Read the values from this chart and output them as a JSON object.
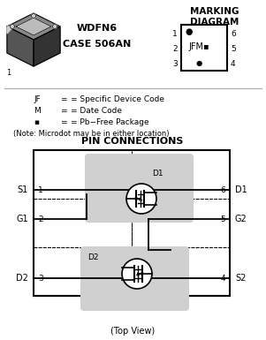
{
  "title_marking": "MARKING\nDIAGRAM",
  "package_name": "WDFN6",
  "package_case": "CASE 506AN",
  "pin_connections_title": "PIN CONNECTIONS",
  "top_view_label": "(Top View)",
  "legend_lines": [
    [
      "JF",
      "= Specific Device Code"
    ],
    [
      "M",
      "= Date Code"
    ],
    [
      "▪",
      "= Pb−Free Package"
    ]
  ],
  "note_line": "(Note: Microdot may be in either location)",
  "marking_pins_left": [
    "1",
    "2",
    "3"
  ],
  "marking_pins_right": [
    "6",
    "5",
    "4"
  ],
  "marking_dot": "●",
  "pin_labels_left": [
    "S1",
    "G1",
    "D2"
  ],
  "pin_labels_right": [
    "D1",
    "G2",
    "S2"
  ],
  "pin_numbers_left": [
    "1",
    "2",
    "3"
  ],
  "pin_numbers_right": [
    "6",
    "5",
    "4"
  ],
  "bg_color": "#ffffff",
  "light_gray": "#d0d0d0"
}
